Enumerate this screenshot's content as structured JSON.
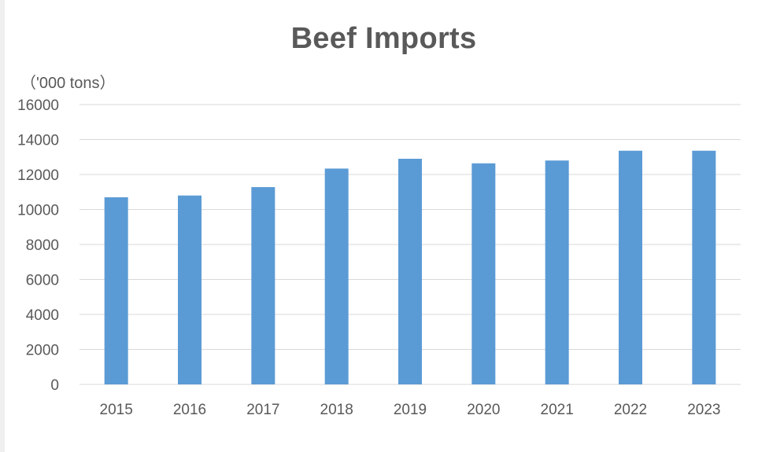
{
  "chart_data": {
    "type": "bar",
    "title": "Beef Imports",
    "unit_label": "（'000 tons）",
    "xlabel": "",
    "ylabel": "",
    "categories": [
      "2015",
      "2016",
      "2017",
      "2018",
      "2019",
      "2020",
      "2021",
      "2022",
      "2023"
    ],
    "values": [
      10700,
      10800,
      11280,
      12340,
      12900,
      12640,
      12800,
      13360,
      13360
    ],
    "ylim": [
      0,
      16000
    ],
    "yticks": [
      "16000",
      "14000",
      "12000",
      "10000",
      "8000",
      "6000",
      "4000",
      "2000",
      "0"
    ],
    "grid": true,
    "bar_color": "#5b9bd5",
    "grid_color": "#d9d9d9",
    "text_color": "#595959"
  }
}
